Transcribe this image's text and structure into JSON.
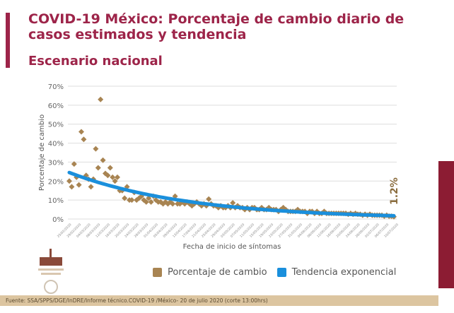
{
  "header": {
    "title": "COVID-19 México: Porcentaje de cambio diario de casos estimados y tendencia",
    "subtitle": "Escenario nacional"
  },
  "colors": {
    "accent": "#9d2449",
    "scatter": "#a88452",
    "trend": "#1a8fdc",
    "footer": "#dcc5a0"
  },
  "footer": {
    "source": "Fuente: SSA/SPPS/DGE/InDRE/Informe técnico.COVID-19 /México- 20 de julio 2020 (corte 13:00hrs)"
  },
  "chart_data": {
    "type": "scatter",
    "xlabel": "Fecha de inicio de síntomas",
    "ylabel": "Porcentaje de cambio",
    "ylim": [
      0,
      70
    ],
    "yticks": [
      "0%",
      "10%",
      "20%",
      "30%",
      "40%",
      "50%",
      "60%",
      "70%"
    ],
    "grid": true,
    "legend_placement": "bottom",
    "xtick_labels": [
      "25/02/2020",
      "29/02/2020",
      "04/03/2020",
      "08/03/2020",
      "12/03/2020",
      "16/03/2020",
      "20/03/2020",
      "24/03/2020",
      "28/03/2020",
      "01/04/2020",
      "05/04/2020",
      "09/04/2020",
      "13/04/2020",
      "17/04/2020",
      "21/04/2020",
      "25/04/2020",
      "29/04/2020",
      "03/05/2020",
      "07/05/2020",
      "11/05/2020",
      "15/05/2020",
      "19/05/2020",
      "23/05/2020",
      "27/05/2020",
      "31/05/2020",
      "04/06/2020",
      "08/06/2020",
      "12/06/2020",
      "16/06/2020",
      "20/06/2020",
      "24/06/2020",
      "28/06/2020",
      "02/07/2020",
      "06/07/2020",
      "10/07/2020"
    ],
    "series": [
      {
        "name": "Porcentaje de cambio",
        "type": "scatter",
        "values": [
          20,
          17,
          29,
          22,
          18,
          46,
          42,
          23,
          21,
          17,
          21,
          37,
          27,
          63,
          31,
          24,
          23,
          27,
          22,
          20,
          22,
          15,
          15,
          11,
          17,
          10,
          10,
          14,
          10,
          11,
          12,
          10,
          9,
          11,
          9,
          12,
          10,
          9,
          9,
          8,
          9,
          8,
          9,
          8,
          12,
          8,
          8,
          9,
          8,
          9,
          8,
          7,
          8,
          9,
          8,
          7,
          8,
          7,
          10.5,
          8,
          7,
          7,
          6,
          7,
          6,
          6,
          7,
          6,
          8.5,
          6,
          7,
          6,
          6,
          5,
          6,
          5,
          6,
          6,
          5,
          5,
          6,
          5,
          5,
          6,
          5,
          5,
          5,
          4,
          5,
          6,
          5,
          4,
          4,
          4,
          4,
          5,
          4,
          4,
          4,
          3,
          4,
          4,
          3,
          4,
          3,
          3,
          4,
          3,
          3,
          3,
          3,
          3,
          3,
          3,
          3,
          3,
          2.5,
          3,
          2.5,
          3,
          2.5,
          2.5,
          2,
          2.5,
          2,
          2.5,
          2,
          2,
          2,
          2,
          2,
          1.5,
          2,
          1.5,
          1.5,
          1.2
        ]
      },
      {
        "name": "Tendencia exponencial",
        "type": "line",
        "model": "exponential",
        "a": 24.5,
        "b": -0.0197
      }
    ],
    "annotations": [
      {
        "text": "1.2%"
      }
    ]
  }
}
